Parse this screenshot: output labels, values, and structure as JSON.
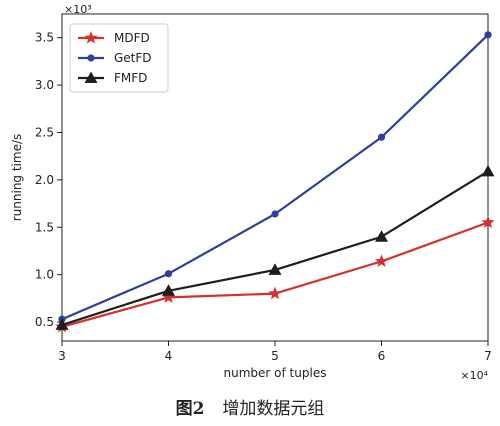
{
  "chart_data": {
    "type": "line",
    "xlabel": "number of tuples",
    "ylabel": "running time/s",
    "x_multiplier": "×10⁴",
    "y_multiplier": "×10³",
    "x": [
      3,
      4,
      5,
      6,
      7
    ],
    "xlim": [
      3,
      7
    ],
    "ylim": [
      0.3,
      3.75
    ],
    "xticks": [
      "3",
      "4",
      "5",
      "6",
      "7"
    ],
    "yticks": [
      "0.5",
      "1.0",
      "1.5",
      "2.0",
      "2.5",
      "3.0",
      "3.5"
    ],
    "ytick_values": [
      0.5,
      1.0,
      1.5,
      2.0,
      2.5,
      3.0,
      3.5
    ],
    "legend_position": "top-left",
    "grid": false,
    "series": [
      {
        "name": "MDFD",
        "color": "#d62f2f",
        "marker": "star",
        "values": [
          0.45,
          0.76,
          0.8,
          1.14,
          1.55
        ]
      },
      {
        "name": "GetFD",
        "color": "#2f3f9a",
        "marker": "circle",
        "values": [
          0.53,
          1.01,
          1.64,
          2.45,
          3.53
        ]
      },
      {
        "name": "FMFD",
        "color": "#1e1e1e",
        "marker": "triangle",
        "values": [
          0.47,
          0.83,
          1.05,
          1.4,
          2.09
        ]
      }
    ]
  },
  "caption": {
    "figure_number": "图2",
    "text": "增加数据元组"
  }
}
